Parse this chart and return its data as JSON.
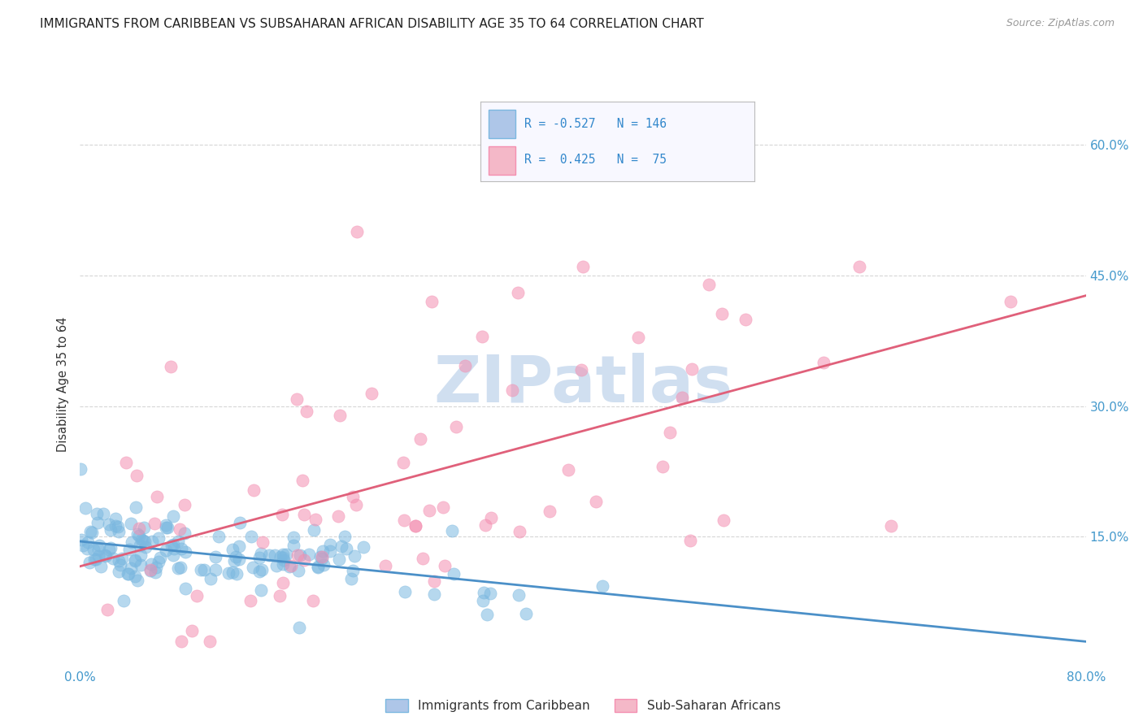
{
  "title": "IMMIGRANTS FROM CARIBBEAN VS SUBSAHARAN AFRICAN DISABILITY AGE 35 TO 64 CORRELATION CHART",
  "source": "Source: ZipAtlas.com",
  "ylabel": "Disability Age 35 to 64",
  "xlim": [
    0.0,
    0.8
  ],
  "ylim": [
    0.0,
    0.65
  ],
  "yticks": [
    0.15,
    0.3,
    0.45,
    0.6
  ],
  "yticklabels": [
    "15.0%",
    "30.0%",
    "45.0%",
    "60.0%"
  ],
  "caribbean_R": -0.527,
  "caribbean_N": 146,
  "subsaharan_R": 0.425,
  "subsaharan_N": 75,
  "caribbean_color": "#7bb8e0",
  "subsaharan_color": "#f48fb1",
  "caribbean_line_color": "#4b90c8",
  "subsaharan_line_color": "#e0607a",
  "watermark": "ZIPatlas",
  "watermark_color": "#d0dff0",
  "background_color": "#ffffff",
  "grid_color": "#cccccc",
  "title_fontsize": 11,
  "tick_label_color": "#4499cc",
  "legend_box_color": "#f8f8ff",
  "legend_border_color": "#bbbbbb"
}
